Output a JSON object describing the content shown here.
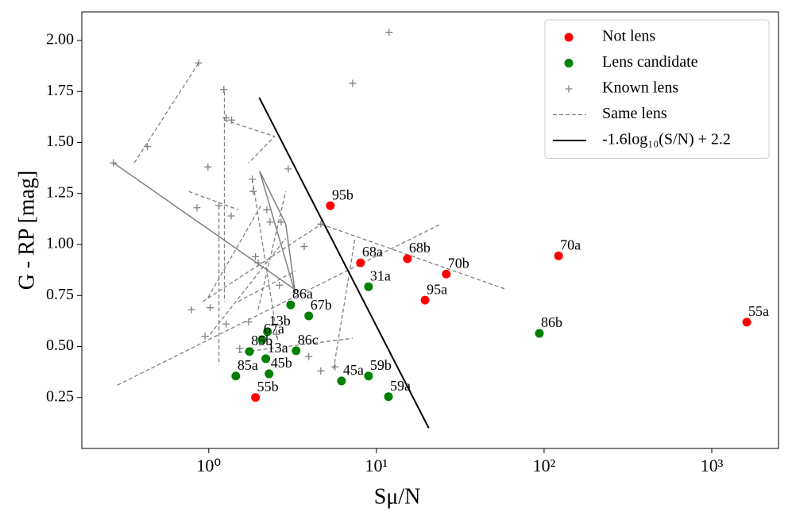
{
  "chart_data": {
    "type": "scatter",
    "x_label": "Sμ/N",
    "y_label": "G - RP [mag]",
    "xscale": "log",
    "xlim": [
      0.175,
      2500
    ],
    "ylim": [
      0.0,
      2.14
    ],
    "xticks": [
      {
        "value": 1,
        "label": "10⁰"
      },
      {
        "value": 10,
        "label": "10¹"
      },
      {
        "value": 100,
        "label": "10²"
      },
      {
        "value": 1000,
        "label": "10³"
      }
    ],
    "yticks": [
      0.25,
      {
        "value": 0.5,
        "label": "0.50"
      },
      0.75,
      {
        "value": 1.0,
        "label": "1.00"
      },
      1.25,
      {
        "value": 1.5,
        "label": "1.50"
      },
      1.75,
      {
        "value": 2.0,
        "label": "2.00"
      }
    ],
    "legend": "upper right",
    "series": [
      {
        "name": "Not lens",
        "marker": "circle",
        "color": "#ff0000",
        "x": [
          5.31,
          8.04,
          15.3,
          26.1,
          19.5,
          122,
          1617,
          1.9
        ],
        "values": [
          1.19,
          0.91,
          0.93,
          0.855,
          0.727,
          0.944,
          0.619,
          0.25
        ],
        "labels": [
          "95b",
          "68a",
          "68b",
          "70b",
          "95a",
          "70a",
          "55a",
          "55b"
        ]
      },
      {
        "name": "Lens candidate",
        "marker": "circle",
        "color": "#008000",
        "x": [
          8.97,
          3.08,
          3.95,
          2.24,
          2.08,
          3.32,
          1.75,
          2.19,
          2.29,
          1.45,
          6.19,
          8.97,
          11.8,
          93.7
        ],
        "values": [
          0.793,
          0.704,
          0.65,
          0.572,
          0.533,
          0.479,
          0.475,
          0.44,
          0.366,
          0.355,
          0.331,
          0.355,
          0.254,
          0.564
        ],
        "labels": [
          "31a",
          "86a",
          "67b",
          "13b",
          "67a",
          "86c",
          "85b",
          "13a",
          "45b",
          "85a",
          "45a",
          "59b",
          "59a",
          "86b"
        ]
      },
      {
        "name": "Known lens",
        "marker": "plus",
        "color": "#808080",
        "x": [
          0.27,
          0.43,
          0.87,
          0.99,
          0.85,
          1.23,
          1.27,
          1.37,
          1.15,
          1.36,
          1.82,
          1.84,
          1.9,
          1.97,
          2.22,
          2.32,
          2.98,
          2.7,
          2.64,
          3.71,
          4.66,
          7.21,
          11.9,
          0.79,
          0.95,
          1.02,
          1.27,
          1.53,
          1.73,
          3.95,
          4.66,
          5.67,
          2.53
        ],
        "values": [
          1.4,
          1.48,
          1.89,
          1.38,
          1.18,
          1.76,
          1.62,
          1.61,
          1.19,
          1.14,
          1.32,
          1.26,
          0.94,
          0.91,
          1.17,
          1.11,
          1.37,
          1.11,
          0.8,
          0.99,
          1.1,
          1.79,
          2.04,
          0.68,
          0.55,
          0.69,
          0.61,
          0.49,
          0.62,
          0.45,
          0.38,
          0.4,
          0.56
        ]
      },
      {
        "name": "Same lens",
        "line": "dashed",
        "color": "#808080",
        "x": [
          0.36,
          0.87,
          null,
          1.24,
          1.24,
          null,
          1.15,
          1.15,
          null,
          1.24,
          2.47,
          1.73,
          null,
          0.76,
          1.5,
          null,
          0.99,
          2.08,
          null,
          0.285,
          24.2,
          null,
          4.66,
          59.3,
          null,
          0.92,
          4.71,
          null,
          1.5,
          3.28,
          null,
          1.5,
          7.21,
          null,
          1.02,
          2.88,
          null,
          5.55,
          7.45,
          null,
          1.82,
          2.58,
          null,
          1.97,
          2.88
        ],
        "values": [
          1.4,
          1.89,
          null,
          1.75,
          0.72,
          null,
          1.19,
          0.41,
          null,
          1.61,
          1.53,
          1.4,
          null,
          1.26,
          1.17,
          null,
          0.74,
          1.2,
          null,
          0.31,
          1.1,
          null,
          1.1,
          0.78,
          null,
          0.72,
          1.1,
          null,
          0.72,
          0.87,
          null,
          0.47,
          0.54,
          null,
          0.56,
          1.03,
          null,
          0.39,
          1.03,
          null,
          1.32,
          0.53,
          null,
          0.68,
          1.26
        ]
      },
      {
        "name": "-1.6log₁₀(S/N) + 2.2",
        "line": "solid",
        "color": "#000000",
        "width": 2,
        "x": [
          2.0,
          20.5
        ],
        "values": [
          1.72,
          0.1
        ]
      },
      {
        "line": "solid",
        "color": "#808080",
        "width": 1.5,
        "x": [
          0.27,
          3.39,
          null,
          2.01,
          2.88,
          3.28,
          2.01
        ],
        "values": [
          1.4,
          0.77,
          null,
          1.36,
          1.1,
          0.76,
          1.36
        ]
      }
    ]
  }
}
